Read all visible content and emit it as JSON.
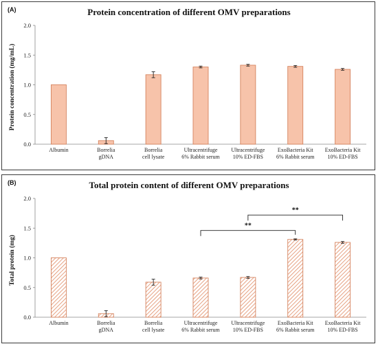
{
  "colors": {
    "bar_fill": "#f7c3aa",
    "bar_stroke": "#d5835e",
    "hatch": "#e08a63",
    "axis": "#888888",
    "error": "#222222"
  },
  "chart_data": [
    {
      "type": "bar",
      "panel_label": "(A)",
      "title": "Protein concentration of different OMV preparations",
      "xlabel": "",
      "ylabel": "Protein concentration (mg/mL)",
      "ylim": [
        0,
        2.0
      ],
      "yticks": [
        "0.0",
        "0.5",
        "1.0",
        "1.5",
        "2.0"
      ],
      "style": "solid",
      "grid": false,
      "categories": [
        [
          "Albumin"
        ],
        [
          "Borrelia",
          "gDNA"
        ],
        [
          "Borrelia",
          "cell lysate"
        ],
        [
          "Ultracentrifuge",
          "6% Rabbit serum"
        ],
        [
          "Ultracentrifuge",
          "10% ED-FBS"
        ],
        [
          "ExoBacteria Kit",
          "6% Rabbit serum"
        ],
        [
          "ExoBacteria Kit",
          "10% ED-FBS"
        ]
      ],
      "values": [
        1.0,
        0.06,
        1.17,
        1.3,
        1.33,
        1.31,
        1.26
      ],
      "errors": [
        0.0,
        0.05,
        0.05,
        0.015,
        0.015,
        0.015,
        0.015
      ],
      "significance": []
    },
    {
      "type": "bar",
      "panel_label": "(B)",
      "title": "Total protein content of different OMV preparations",
      "xlabel": "",
      "ylabel": "Total protein (mg)",
      "ylim": [
        0,
        2.0
      ],
      "yticks": [
        "0.0",
        "0.5",
        "1.0",
        "1.5",
        "2.0"
      ],
      "style": "hatched",
      "grid": false,
      "categories": [
        [
          "Albumin"
        ],
        [
          "Borrelia",
          "gDNA"
        ],
        [
          "Borrelia",
          "cell lysate"
        ],
        [
          "Ultracentrifuge",
          "6% Rabbit serum"
        ],
        [
          "Ultracentrifuge",
          "10% ED-FBS"
        ],
        [
          "ExoBacteria Kit",
          "6% Rabbit serum"
        ],
        [
          "ExoBacteria Kit",
          "10% ED-FBS"
        ]
      ],
      "values": [
        1.0,
        0.06,
        0.59,
        0.66,
        0.67,
        1.31,
        1.26
      ],
      "errors": [
        0.0,
        0.05,
        0.05,
        0.015,
        0.015,
        0.01,
        0.015
      ],
      "significance": [
        {
          "from": 3,
          "to": 5,
          "label": "**",
          "y": 1.46
        },
        {
          "from": 4,
          "to": 6,
          "label": "**",
          "y": 1.72
        }
      ]
    }
  ]
}
